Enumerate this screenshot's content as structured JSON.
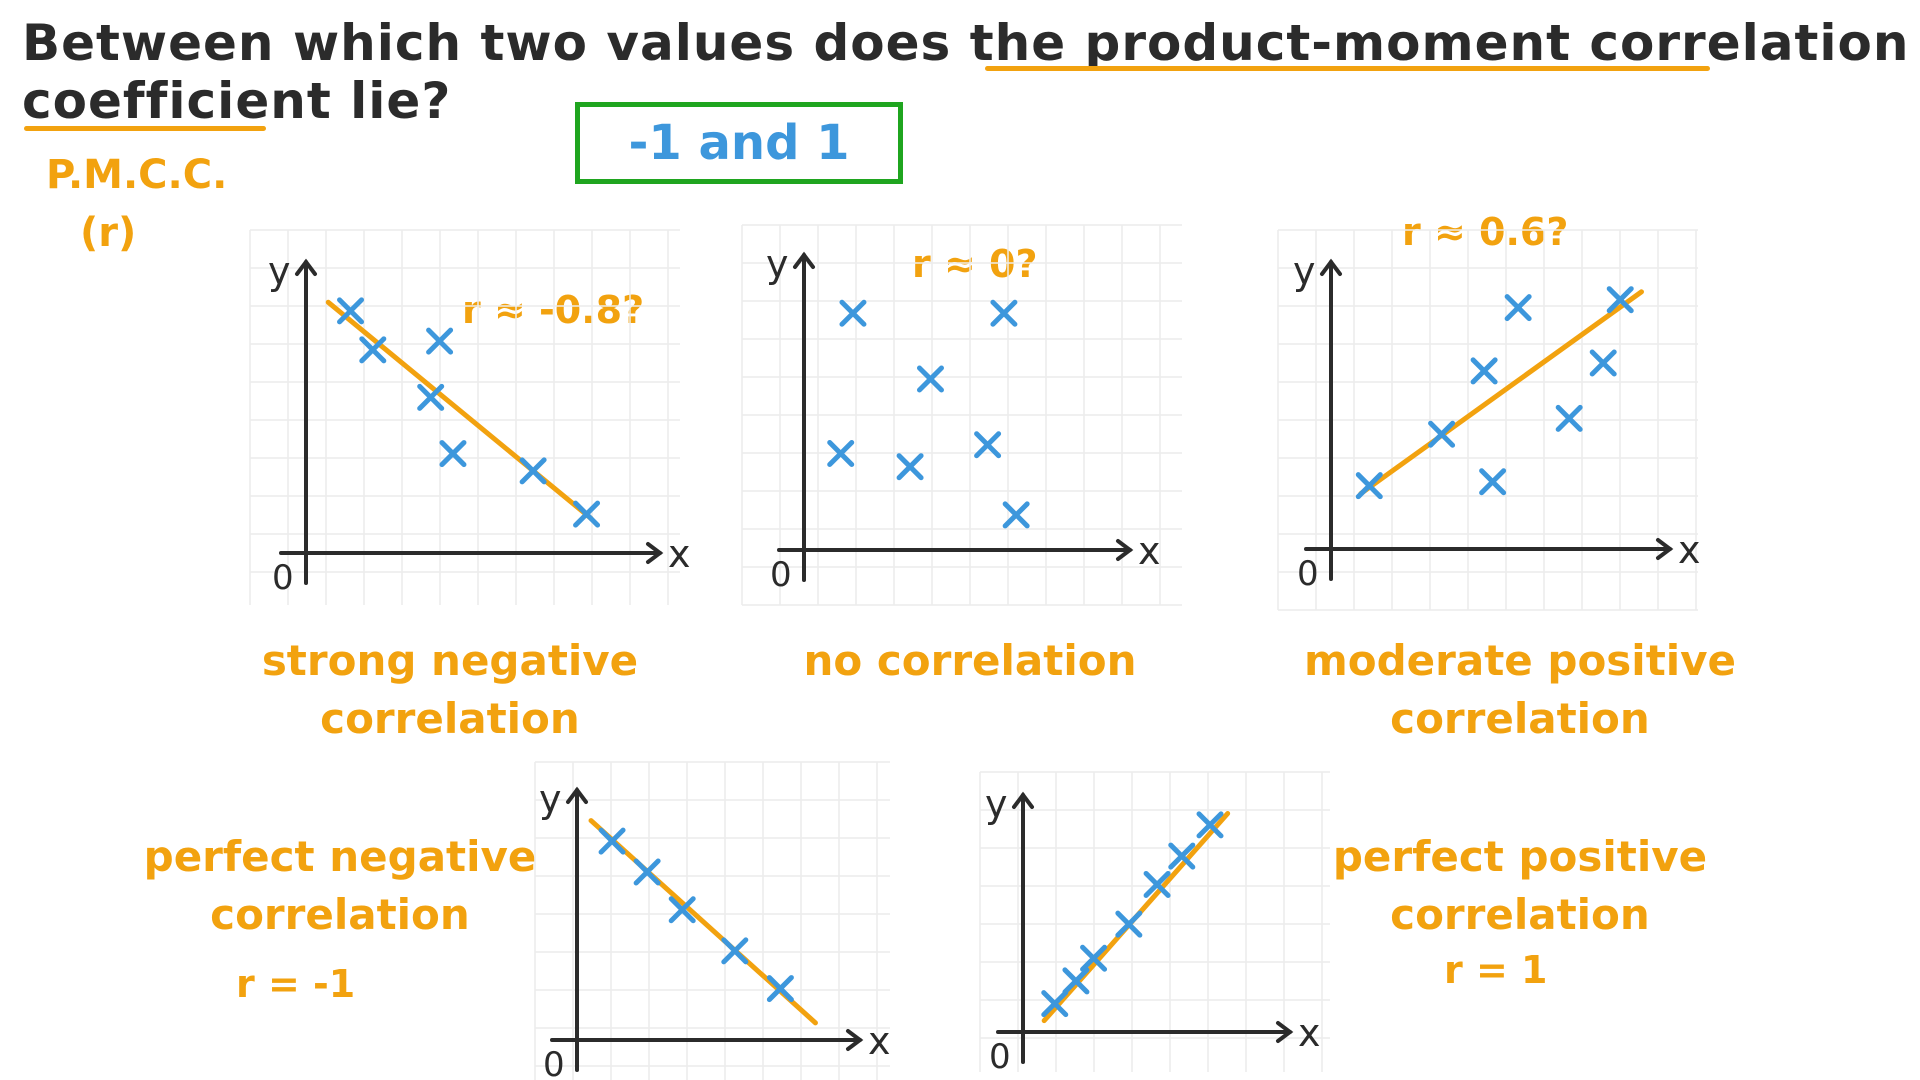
{
  "question": {
    "line1": "Between which two values does the product-moment correlation",
    "line2_emph": "coefficient",
    "line2_rest": "lie?"
  },
  "notation": {
    "name": "P.M.C.C.",
    "symbol": "(r)"
  },
  "answer": "-1 and 1",
  "colors": {
    "ink": "#2b2b2b",
    "accent": "#f2a20f",
    "points": "#3d97dc",
    "answer_box": "#1fa51f",
    "grid": "#ececec"
  },
  "chart_data": [
    {
      "type": "scatter",
      "xlabel": "x",
      "ylabel": "y",
      "origin_label": "0",
      "annotation": "r ≈ -0.8?",
      "label_lines": [
        "strong negative",
        "correlation"
      ],
      "trend_line": true,
      "x": [
        1,
        1.5,
        3,
        2.8,
        3.3,
        5.1,
        6.3
      ],
      "y": [
        5.6,
        4.7,
        4.9,
        3.6,
        2.3,
        1.9,
        0.9
      ],
      "trend": [
        [
          0.5,
          5.8
        ],
        [
          6.4,
          0.8
        ]
      ]
    },
    {
      "type": "scatter",
      "xlabel": "x",
      "ylabel": "y",
      "origin_label": "0",
      "annotation": "r ≈ 0?",
      "label_lines": [
        "no correlation"
      ],
      "trend_line": false,
      "x": [
        1.2,
        0.9,
        3.1,
        2.6,
        4.9,
        4.5,
        5.2
      ],
      "y": [
        5.4,
        2.2,
        3.9,
        1.9,
        5.4,
        2.4,
        0.8
      ],
      "trend": null
    },
    {
      "type": "scatter",
      "xlabel": "x",
      "ylabel": "y",
      "origin_label": "0",
      "annotation": "r ≈ 0.6?",
      "label_lines": [
        "moderate positive",
        "correlation"
      ],
      "trend_line": true,
      "x": [
        0.9,
        2.6,
        3.6,
        4.4,
        3.8,
        5.6,
        6.4,
        6.8
      ],
      "y": [
        1.6,
        2.9,
        4.5,
        6.1,
        1.7,
        3.3,
        4.7,
        6.3
      ],
      "trend": [
        [
          0.7,
          1.4
        ],
        [
          7.3,
          6.5
        ]
      ]
    },
    {
      "type": "scatter",
      "xlabel": "x",
      "ylabel": "y",
      "origin_label": "0",
      "annotation": "r = -1",
      "label_lines": [
        "perfect negative",
        "correlation"
      ],
      "trend_line": true,
      "x": [
        1,
        2,
        3,
        4.5,
        5.8
      ],
      "y": [
        5.8,
        4.9,
        3.8,
        2.6,
        1.5
      ],
      "trend": [
        [
          0.4,
          6.4
        ],
        [
          6.8,
          0.5
        ]
      ]
    },
    {
      "type": "scatter",
      "xlabel": "x",
      "ylabel": "y",
      "origin_label": "0",
      "annotation": "r = 1",
      "label_lines": [
        "perfect positive",
        "correlation"
      ],
      "trend_line": true,
      "x": [
        0.9,
        1.5,
        2,
        3,
        3.8,
        4.5,
        5.3
      ],
      "y": [
        1,
        1.8,
        2.6,
        3.8,
        5.2,
        6.2,
        7.3
      ],
      "trend": [
        [
          0.6,
          0.4
        ],
        [
          5.8,
          7.7
        ]
      ]
    }
  ]
}
